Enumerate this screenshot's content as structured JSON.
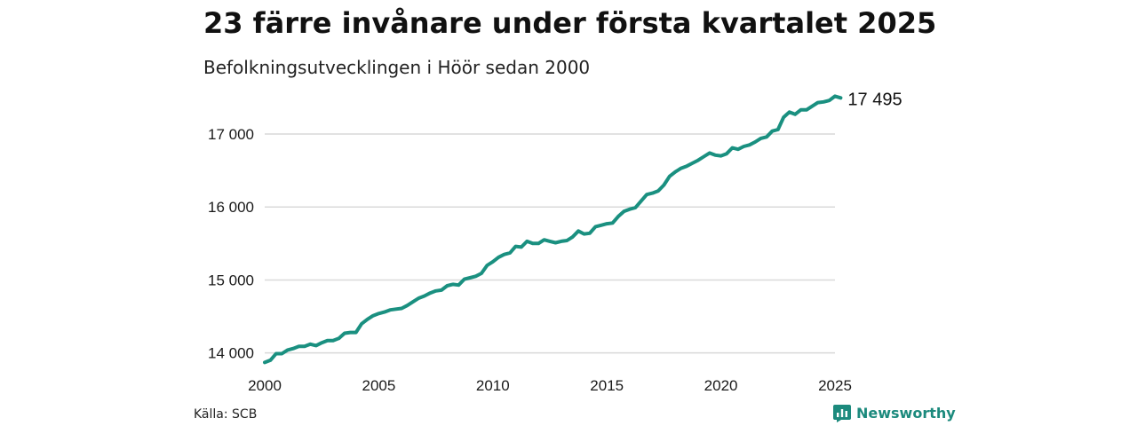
{
  "header": {
    "title": "23 färre invånare under första kvartalet 2025",
    "subtitle": "Befolkningsutvecklingen i Höör sedan 2000"
  },
  "footer": {
    "source": "Källa: SCB",
    "brand": "Newsworthy",
    "brand_icon": "bar-chart-logo-icon"
  },
  "colors": {
    "line": "#1a9080",
    "grid": "#d9d9d9",
    "brand": "#1c8a7d"
  },
  "chart_data": {
    "type": "line",
    "x_unit": "year",
    "x_ticks": [
      2000,
      2005,
      2010,
      2015,
      2020,
      2025
    ],
    "x_tick_labels": [
      "2000",
      "2005",
      "2010",
      "2015",
      "2020",
      "2025"
    ],
    "y_ticks": [
      14000,
      15000,
      16000,
      17000
    ],
    "y_tick_labels": [
      "14 000",
      "15 000",
      "16 000",
      "17 000"
    ],
    "xlim": [
      2000,
      2025
    ],
    "ylim": [
      13850,
      17620
    ],
    "grid": "horizontal",
    "end_label": "17 495",
    "series": [
      {
        "values": [
          [
            2000.0,
            13870
          ],
          [
            2000.25,
            13900
          ],
          [
            2000.5,
            13990
          ],
          [
            2000.75,
            13990
          ],
          [
            2001.0,
            14040
          ],
          [
            2001.25,
            14060
          ],
          [
            2001.5,
            14090
          ],
          [
            2001.75,
            14090
          ],
          [
            2002.0,
            14120
          ],
          [
            2002.25,
            14100
          ],
          [
            2002.5,
            14140
          ],
          [
            2002.75,
            14170
          ],
          [
            2003.0,
            14170
          ],
          [
            2003.25,
            14200
          ],
          [
            2003.5,
            14270
          ],
          [
            2003.75,
            14280
          ],
          [
            2004.0,
            14280
          ],
          [
            2004.25,
            14400
          ],
          [
            2004.5,
            14460
          ],
          [
            2004.75,
            14510
          ],
          [
            2005.0,
            14540
          ],
          [
            2005.25,
            14560
          ],
          [
            2005.5,
            14590
          ],
          [
            2005.75,
            14600
          ],
          [
            2006.0,
            14610
          ],
          [
            2006.25,
            14650
          ],
          [
            2006.5,
            14700
          ],
          [
            2006.75,
            14750
          ],
          [
            2007.0,
            14780
          ],
          [
            2007.25,
            14820
          ],
          [
            2007.5,
            14850
          ],
          [
            2007.75,
            14860
          ],
          [
            2008.0,
            14920
          ],
          [
            2008.25,
            14940
          ],
          [
            2008.5,
            14930
          ],
          [
            2008.75,
            15010
          ],
          [
            2009.0,
            15030
          ],
          [
            2009.25,
            15050
          ],
          [
            2009.5,
            15090
          ],
          [
            2009.75,
            15200
          ],
          [
            2010.0,
            15250
          ],
          [
            2010.25,
            15310
          ],
          [
            2010.5,
            15350
          ],
          [
            2010.75,
            15370
          ],
          [
            2011.0,
            15460
          ],
          [
            2011.25,
            15450
          ],
          [
            2011.5,
            15530
          ],
          [
            2011.75,
            15500
          ],
          [
            2012.0,
            15500
          ],
          [
            2012.25,
            15550
          ],
          [
            2012.5,
            15530
          ],
          [
            2012.75,
            15510
          ],
          [
            2013.0,
            15530
          ],
          [
            2013.25,
            15540
          ],
          [
            2013.5,
            15590
          ],
          [
            2013.75,
            15670
          ],
          [
            2014.0,
            15630
          ],
          [
            2014.25,
            15640
          ],
          [
            2014.5,
            15730
          ],
          [
            2014.75,
            15750
          ],
          [
            2015.0,
            15770
          ],
          [
            2015.25,
            15780
          ],
          [
            2015.5,
            15870
          ],
          [
            2015.75,
            15940
          ],
          [
            2016.0,
            15970
          ],
          [
            2016.25,
            15990
          ],
          [
            2016.5,
            16080
          ],
          [
            2016.75,
            16170
          ],
          [
            2017.0,
            16190
          ],
          [
            2017.25,
            16220
          ],
          [
            2017.5,
            16300
          ],
          [
            2017.75,
            16420
          ],
          [
            2018.0,
            16480
          ],
          [
            2018.25,
            16530
          ],
          [
            2018.5,
            16560
          ],
          [
            2018.75,
            16600
          ],
          [
            2019.0,
            16640
          ],
          [
            2019.25,
            16690
          ],
          [
            2019.5,
            16740
          ],
          [
            2019.75,
            16710
          ],
          [
            2020.0,
            16700
          ],
          [
            2020.25,
            16730
          ],
          [
            2020.5,
            16810
          ],
          [
            2020.75,
            16790
          ],
          [
            2021.0,
            16830
          ],
          [
            2021.25,
            16850
          ],
          [
            2021.5,
            16890
          ],
          [
            2021.75,
            16940
          ],
          [
            2022.0,
            16960
          ],
          [
            2022.25,
            17040
          ],
          [
            2022.5,
            17060
          ],
          [
            2022.75,
            17230
          ],
          [
            2023.0,
            17300
          ],
          [
            2023.25,
            17270
          ],
          [
            2023.5,
            17330
          ],
          [
            2023.75,
            17330
          ],
          [
            2024.0,
            17380
          ],
          [
            2024.25,
            17430
          ],
          [
            2024.5,
            17440
          ],
          [
            2024.75,
            17460
          ],
          [
            2025.0,
            17518
          ],
          [
            2025.25,
            17495
          ]
        ]
      }
    ]
  }
}
